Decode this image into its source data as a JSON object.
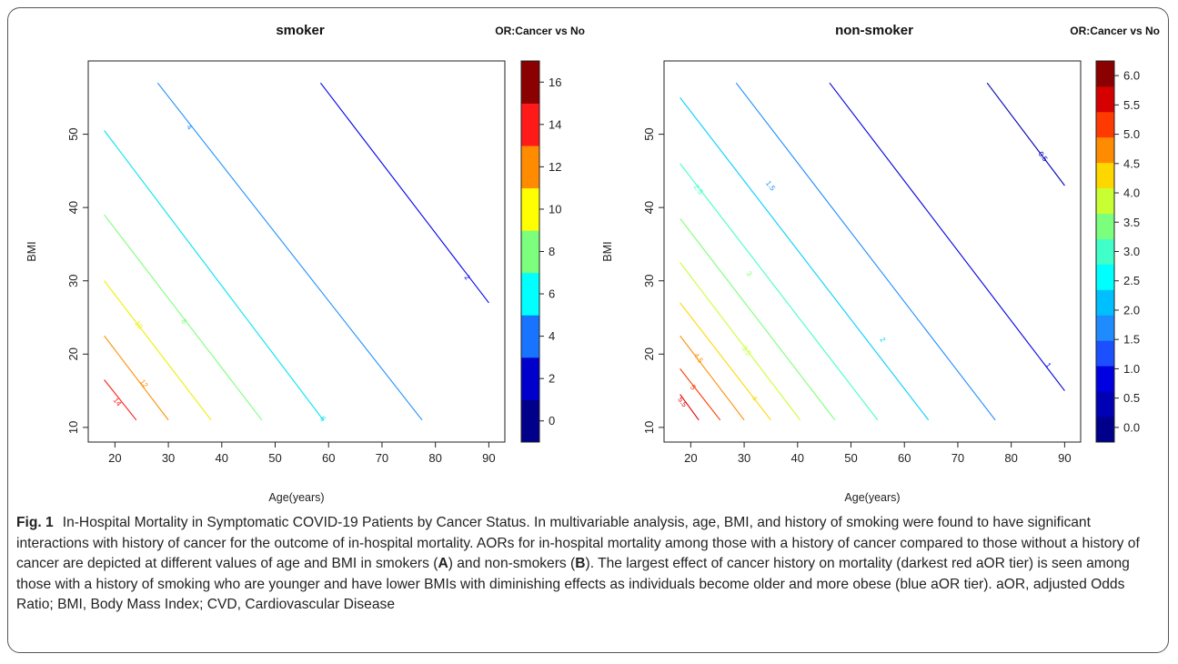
{
  "chart_data": [
    {
      "type": "contour",
      "title": "smoker",
      "legend_title": "OR:Cancer vs No",
      "xlabel": "Age(years)",
      "ylabel": "BMI",
      "xlim": [
        15,
        93
      ],
      "ylim": [
        8,
        60
      ],
      "xticks": [
        "20",
        "30",
        "40",
        "50",
        "60",
        "70",
        "80",
        "90"
      ],
      "yticks": [
        "10",
        "20",
        "30",
        "40",
        "50"
      ],
      "color_scale": {
        "min": -1,
        "max": 17,
        "colors": [
          "#00008b",
          "#0000cd",
          "#1874ff",
          "#00ffff",
          "#7cff7c",
          "#ffff00",
          "#ff8c00",
          "#ff1a1a",
          "#8b0000"
        ],
        "ticks": [
          "0",
          "2",
          "4",
          "6",
          "8",
          "10",
          "12",
          "14",
          "16"
        ]
      },
      "contours": [
        {
          "level": "14",
          "points": [
            [
              18,
              16.5
            ],
            [
              24,
              11
            ]
          ],
          "label_at": [
            20.5,
            13.5
          ],
          "color": "#ff1a1a"
        },
        {
          "level": "12",
          "points": [
            [
              18,
              22.5
            ],
            [
              30,
              11
            ]
          ],
          "label_at": [
            25.5,
            16
          ],
          "color": "#ff8c00"
        },
        {
          "level": "10",
          "points": [
            [
              18,
              30
            ],
            [
              38,
              11
            ]
          ],
          "label_at": [
            24.5,
            24
          ],
          "color": "#eeee00"
        },
        {
          "level": "8",
          "points": [
            [
              18,
              39
            ],
            [
              47.5,
              11
            ]
          ],
          "label_at": [
            33,
            24.5
          ],
          "color": "#7cff7c"
        },
        {
          "level": "6",
          "points": [
            [
              18,
              50.5
            ],
            [
              59,
              11
            ]
          ],
          "label_at": [
            59,
            11.2
          ],
          "color": "#00e5ee"
        },
        {
          "level": "4",
          "points": [
            [
              28,
              57
            ],
            [
              77.5,
              11
            ]
          ],
          "label_at": [
            34,
            51
          ],
          "color": "#1e90ff"
        },
        {
          "level": "2",
          "points": [
            [
              58.5,
              57
            ],
            [
              90,
              27
            ]
          ],
          "label_at": [
            86,
            30.5
          ],
          "color": "#0000ee"
        }
      ]
    },
    {
      "type": "contour",
      "title": "non-smoker",
      "legend_title": "OR:Cancer vs No",
      "xlabel": "Age(years)",
      "ylabel": "BMI",
      "xlim": [
        15,
        93
      ],
      "ylim": [
        8,
        60
      ],
      "xticks": [
        "20",
        "30",
        "40",
        "50",
        "60",
        "70",
        "80",
        "90"
      ],
      "yticks": [
        "10",
        "20",
        "30",
        "40",
        "50"
      ],
      "color_scale": {
        "min": -0.25,
        "max": 6.25,
        "colors": [
          "#00008b",
          "#0000b4",
          "#0000e0",
          "#1c50ff",
          "#1e8cff",
          "#00bfff",
          "#00ffff",
          "#40ffc8",
          "#7cff7c",
          "#c8ff32",
          "#ffd700",
          "#ff8c00",
          "#ff3a00",
          "#d50000",
          "#8b0000"
        ],
        "ticks": [
          "0.0",
          "0.5",
          "1.0",
          "1.5",
          "2.0",
          "2.5",
          "3.0",
          "3.5",
          "4.0",
          "4.5",
          "5.0",
          "5.5",
          "6.0"
        ]
      },
      "contours": [
        {
          "level": "5.5",
          "points": [
            [
              18,
              14.5
            ],
            [
              21.5,
              11
            ]
          ],
          "label_at": [
            18.5,
            13.5
          ],
          "color": "#e00000"
        },
        {
          "level": "5",
          "points": [
            [
              18,
              18
            ],
            [
              25.5,
              11
            ]
          ],
          "label_at": [
            20.5,
            15.5
          ],
          "color": "#ff3a00"
        },
        {
          "level": "4.5",
          "points": [
            [
              18,
              22.5
            ],
            [
              30,
              11
            ]
          ],
          "label_at": [
            21.5,
            19.5
          ],
          "color": "#ff8c00"
        },
        {
          "level": "4",
          "points": [
            [
              18,
              27
            ],
            [
              35,
              11
            ]
          ],
          "label_at": [
            32,
            14
          ],
          "color": "#ffd700"
        },
        {
          "level": "3.5",
          "points": [
            [
              18,
              32.5
            ],
            [
              40.5,
              11
            ]
          ],
          "label_at": [
            30.5,
            20.5
          ],
          "color": "#c8ff32"
        },
        {
          "level": "3",
          "points": [
            [
              18,
              38.5
            ],
            [
              47,
              11
            ]
          ],
          "label_at": [
            31,
            31
          ],
          "color": "#7cff7c"
        },
        {
          "level": "2.5",
          "points": [
            [
              18,
              46
            ],
            [
              55,
              11
            ]
          ],
          "label_at": [
            21.5,
            42.5
          ],
          "color": "#40ffc8"
        },
        {
          "level": "2",
          "points": [
            [
              18,
              55
            ],
            [
              64.5,
              11
            ]
          ],
          "label_at": [
            56,
            22
          ],
          "color": "#00cfff"
        },
        {
          "level": "1.5",
          "points": [
            [
              28.5,
              57
            ],
            [
              77,
              11
            ]
          ],
          "label_at": [
            35,
            43
          ],
          "color": "#1e8cff"
        },
        {
          "level": "1",
          "points": [
            [
              46,
              57
            ],
            [
              90,
              15
            ]
          ],
          "label_at": [
            87,
            18.5
          ],
          "color": "#0000e0"
        },
        {
          "level": "0.5",
          "points": [
            [
              75.5,
              57
            ],
            [
              90,
              43
            ]
          ],
          "label_at": [
            86,
            47
          ],
          "color": "#0000b4"
        }
      ]
    }
  ],
  "caption": {
    "label": "Fig. 1",
    "text_1": "In-Hospital Mortality in Symptomatic COVID-19 Patients by Cancer Status. In multivariable analysis, age, BMI, and history of smoking were found to have significant interactions with history of cancer for the outcome of in-hospital mortality. AORs for in-hospital mortality among those with a history of cancer compared to those without a history of cancer are depicted at different values of age and BMI in smokers (",
    "bold_a": "A",
    "text_2": ") and non-smokers (",
    "bold_b": "B",
    "text_3": "). The largest effect of cancer history on mortality (darkest red aOR tier) is seen among those with a history of smoking who are younger and have lower BMIs with diminishing effects as individuals become older and more obese (blue aOR tier). aOR, adjusted Odds Ratio; BMI, Body Mass Index; CVD, Cardiovascular Disease"
  }
}
